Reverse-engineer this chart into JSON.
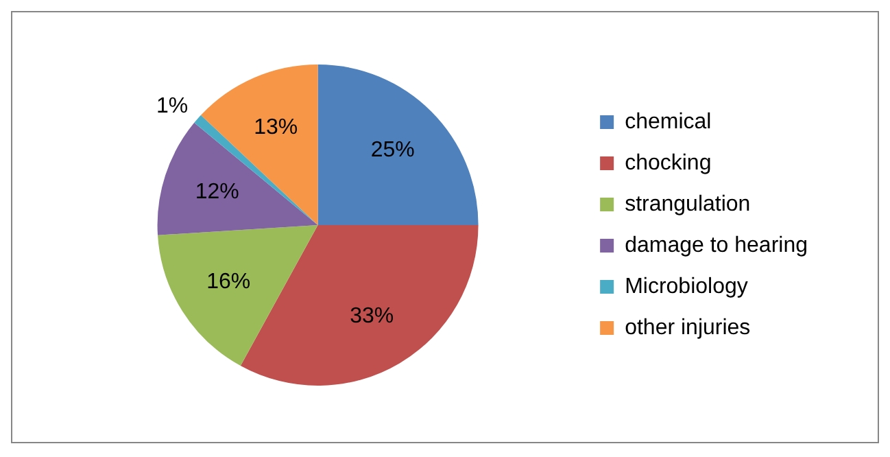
{
  "chart_data": {
    "type": "pie",
    "categories": [
      "chemical",
      "chocking",
      "strangulation",
      "damage to hearing",
      "Microbiology",
      "other injuries"
    ],
    "values": [
      25,
      33,
      16,
      12,
      1,
      13
    ],
    "colors": [
      "#4f81bd",
      "#c0504d",
      "#9bbb59",
      "#8064a2",
      "#4bacc6",
      "#f79646"
    ],
    "value_labels": [
      "25%",
      "33%",
      "16%",
      "12%",
      "1%",
      "13%"
    ],
    "legend": "right"
  }
}
